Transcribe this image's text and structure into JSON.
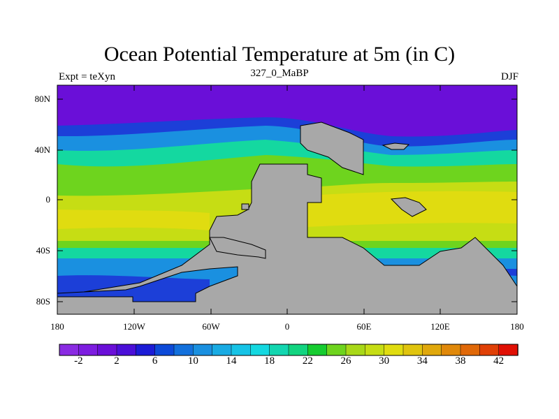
{
  "title": "Ocean Potential Temperature at 5m (in C)",
  "left_subtitle": "Expt = teXyn",
  "center_subtitle": "327_0_MaBP",
  "right_subtitle": "DJF",
  "lat_ticks": [
    "80N",
    "40N",
    "0",
    "40S",
    "80S"
  ],
  "lon_ticks": [
    "180",
    "120W",
    "60W",
    "0",
    "60E",
    "120E",
    "180"
  ],
  "colorbar": {
    "labels": [
      "-2",
      "2",
      "6",
      "10",
      "14",
      "18",
      "22",
      "26",
      "30",
      "34",
      "38",
      "42"
    ],
    "colors": [
      "#8a2be2",
      "#7d1de0",
      "#6a0fd8",
      "#4b0fd8",
      "#1c1cd6",
      "#0d4ad8",
      "#1370dc",
      "#1a90e0",
      "#19abe3",
      "#16c3e6",
      "#14d8e0",
      "#13d6b0",
      "#12d480",
      "#16cc30",
      "#6ed41e",
      "#a8d818",
      "#c6dd14",
      "#e0dc10",
      "#e0c40e",
      "#e0a80c",
      "#e0880a",
      "#e06808",
      "#e04006",
      "#e01004"
    ]
  },
  "map_colors": {
    "polar": "#6a0fd8",
    "cold": "#1c3fd8",
    "cool": "#1a90e0",
    "mild": "#14d8a0",
    "warm": "#6ed41e",
    "hot": "#c6dd14",
    "hottest": "#e0dc10",
    "land": "#a8a8a8"
  }
}
